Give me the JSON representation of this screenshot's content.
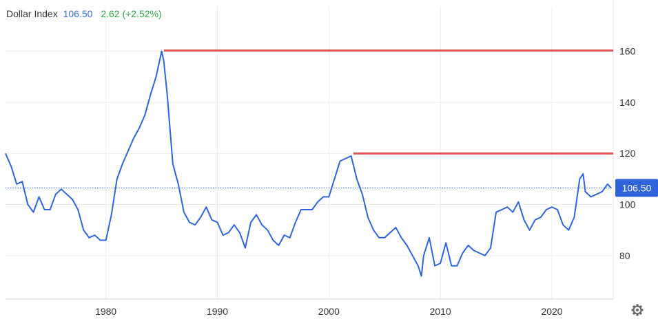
{
  "legend": {
    "name": "Dollar Index",
    "value": "106.50",
    "change": "2.62 (+2.52%)"
  },
  "colors": {
    "series": "#2f63dc",
    "resistance": "#e05454",
    "change_positive": "#2ea84a",
    "badge_bg": "#2f63dc",
    "grid": "#ececec"
  },
  "icons": {
    "settings": "gear-icon"
  },
  "chart_data": {
    "type": "line",
    "xlabel": "",
    "ylabel": "",
    "xlim": [
      1971,
      2025.5
    ],
    "ylim": [
      63,
      172
    ],
    "x_ticks": [
      1980,
      1990,
      2000,
      2010,
      2020
    ],
    "y_ticks": [
      80,
      100,
      120,
      140,
      160
    ],
    "grid": true,
    "y_axis_side": "right",
    "current_value": 106.5,
    "current_label": "106.50",
    "series": [
      {
        "name": "Dollar Index",
        "x": [
          1971.0,
          1971.5,
          1972.0,
          1972.5,
          1973.0,
          1973.5,
          1974.0,
          1974.5,
          1975.0,
          1975.5,
          1976.0,
          1976.5,
          1977.0,
          1977.5,
          1978.0,
          1978.5,
          1979.0,
          1979.5,
          1980.0,
          1980.5,
          1981.0,
          1981.5,
          1982.0,
          1982.5,
          1983.0,
          1983.5,
          1984.0,
          1984.5,
          1985.0,
          1985.2,
          1985.5,
          1986.0,
          1986.5,
          1987.0,
          1987.5,
          1988.0,
          1988.5,
          1989.0,
          1989.5,
          1990.0,
          1990.5,
          1991.0,
          1991.5,
          1992.0,
          1992.5,
          1993.0,
          1993.5,
          1994.0,
          1994.5,
          1995.0,
          1995.5,
          1996.0,
          1996.5,
          1997.0,
          1997.5,
          1998.0,
          1998.5,
          1999.0,
          1999.5,
          2000.0,
          2000.5,
          2001.0,
          2001.5,
          2002.0,
          2002.5,
          2003.0,
          2003.5,
          2004.0,
          2004.5,
          2005.0,
          2005.5,
          2006.0,
          2006.5,
          2007.0,
          2007.5,
          2008.0,
          2008.3,
          2008.5,
          2009.0,
          2009.5,
          2010.0,
          2010.5,
          2011.0,
          2011.5,
          2012.0,
          2012.5,
          2013.0,
          2013.5,
          2014.0,
          2014.5,
          2015.0,
          2015.5,
          2016.0,
          2016.5,
          2017.0,
          2017.5,
          2018.0,
          2018.5,
          2019.0,
          2019.5,
          2020.0,
          2020.5,
          2021.0,
          2021.5,
          2022.0,
          2022.5,
          2022.8,
          2023.0,
          2023.5,
          2024.0,
          2024.5,
          2025.0,
          2025.3
        ],
        "y": [
          120,
          115,
          108,
          109,
          100,
          97,
          103,
          98,
          98,
          104,
          106,
          104,
          102,
          98,
          90,
          87,
          88,
          86,
          86,
          96,
          110,
          116,
          121,
          126,
          130,
          135,
          143,
          150,
          160,
          156,
          143,
          116,
          108,
          97,
          93,
          92,
          95,
          99,
          94,
          93,
          88,
          89,
          92,
          89,
          83,
          93,
          96,
          92,
          90,
          86,
          84,
          88,
          87,
          93,
          98,
          98,
          98,
          101,
          103,
          103,
          110,
          117,
          118,
          119,
          110,
          104,
          95,
          90,
          87,
          87,
          89,
          91,
          87,
          84,
          80,
          76,
          72,
          80,
          87,
          76,
          77,
          85,
          76,
          76,
          81,
          84,
          82,
          81,
          80,
          83,
          97,
          98,
          99,
          97,
          101,
          94,
          90,
          94,
          95,
          98,
          99,
          98,
          92,
          90,
          95,
          110,
          112,
          105,
          103,
          104,
          105,
          108,
          106.5
        ]
      }
    ],
    "horizontal_lines": [
      {
        "value": 160.3,
        "x_start": 1985.2,
        "x_end": 2025.5
      },
      {
        "value": 120.0,
        "x_start": 2002.2,
        "x_end": 2025.5
      }
    ]
  }
}
